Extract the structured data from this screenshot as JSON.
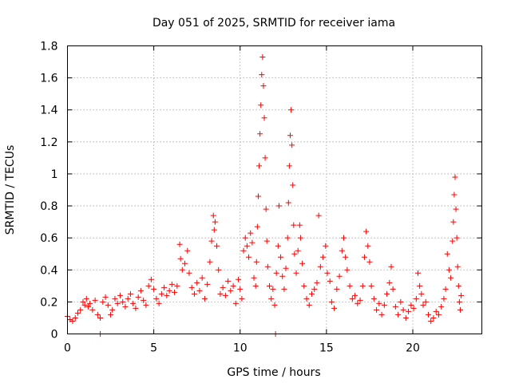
{
  "chart_data": {
    "type": "scatter",
    "title": "Day 051 of 2025, SRMTID for receiver iama",
    "xlabel": "GPS time / hours",
    "ylabel": "SRMTID / TECUs",
    "xlim": [
      0,
      24
    ],
    "ylim": [
      0,
      1.8
    ],
    "xticks": [
      0,
      5,
      10,
      15,
      20
    ],
    "xtick_labels": [
      "0",
      "5",
      "10",
      "15",
      "20"
    ],
    "yticks": [
      0,
      0.2,
      0.4,
      0.6,
      0.8,
      1.0,
      1.2,
      1.4,
      1.6,
      1.8
    ],
    "ytick_labels": [
      "0",
      "0.2",
      "0.4",
      "0.6",
      "0.8",
      "1",
      "1.2",
      "1.4",
      "1.6",
      "1.8"
    ],
    "grid": true,
    "marker": "+",
    "color": "#ff0000",
    "series": [
      {
        "name": "SRMTID",
        "points": [
          [
            0.0,
            0.11
          ],
          [
            0.15,
            0.09
          ],
          [
            0.3,
            0.08
          ],
          [
            0.45,
            0.1
          ],
          [
            0.6,
            0.13
          ],
          [
            0.75,
            0.15
          ],
          [
            0.9,
            0.2
          ],
          [
            1.0,
            0.18
          ],
          [
            1.1,
            0.22
          ],
          [
            1.2,
            0.17
          ],
          [
            1.3,
            0.19
          ],
          [
            1.45,
            0.15
          ],
          [
            1.6,
            0.21
          ],
          [
            1.75,
            0.12
          ],
          [
            1.9,
            0.1
          ],
          [
            1.9,
            0.0
          ],
          [
            2.05,
            0.2
          ],
          [
            2.2,
            0.23
          ],
          [
            2.35,
            0.18
          ],
          [
            2.5,
            0.12
          ],
          [
            2.6,
            0.15
          ],
          [
            2.75,
            0.22
          ],
          [
            2.9,
            0.19
          ],
          [
            3.05,
            0.24
          ],
          [
            3.2,
            0.2
          ],
          [
            3.35,
            0.17
          ],
          [
            3.5,
            0.22
          ],
          [
            3.65,
            0.25
          ],
          [
            3.8,
            0.19
          ],
          [
            3.95,
            0.16
          ],
          [
            4.1,
            0.23
          ],
          [
            4.25,
            0.27
          ],
          [
            4.4,
            0.21
          ],
          [
            4.55,
            0.18
          ],
          [
            4.7,
            0.3
          ],
          [
            4.85,
            0.34
          ],
          [
            5.0,
            0.28
          ],
          [
            5.15,
            0.22
          ],
          [
            5.3,
            0.19
          ],
          [
            5.45,
            0.25
          ],
          [
            5.6,
            0.29
          ],
          [
            5.75,
            0.24
          ],
          [
            5.9,
            0.27
          ],
          [
            6.05,
            0.31
          ],
          [
            6.2,
            0.26
          ],
          [
            6.35,
            0.3
          ],
          [
            6.5,
            0.56
          ],
          [
            6.55,
            0.47
          ],
          [
            6.65,
            0.4
          ],
          [
            6.8,
            0.44
          ],
          [
            6.95,
            0.52
          ],
          [
            7.05,
            0.38
          ],
          [
            7.2,
            0.29
          ],
          [
            7.35,
            0.25
          ],
          [
            7.5,
            0.32
          ],
          [
            7.65,
            0.27
          ],
          [
            7.8,
            0.35
          ],
          [
            7.95,
            0.22
          ],
          [
            8.1,
            0.31
          ],
          [
            8.25,
            0.45
          ],
          [
            8.35,
            0.58
          ],
          [
            8.45,
            0.74
          ],
          [
            8.5,
            0.65
          ],
          [
            8.55,
            0.7
          ],
          [
            8.65,
            0.55
          ],
          [
            8.75,
            0.4
          ],
          [
            8.85,
            0.25
          ],
          [
            9.0,
            0.29
          ],
          [
            9.15,
            0.24
          ],
          [
            9.3,
            0.33
          ],
          [
            9.45,
            0.27
          ],
          [
            9.6,
            0.3
          ],
          [
            9.75,
            0.19
          ],
          [
            9.9,
            0.34
          ],
          [
            10.0,
            0.28
          ],
          [
            10.1,
            0.22
          ],
          [
            10.2,
            0.52
          ],
          [
            10.3,
            0.6
          ],
          [
            10.4,
            0.55
          ],
          [
            10.5,
            0.48
          ],
          [
            10.6,
            0.63
          ],
          [
            10.7,
            0.57
          ],
          [
            10.8,
            0.35
          ],
          [
            10.9,
            0.3
          ],
          [
            10.95,
            0.45
          ],
          [
            11.0,
            0.67
          ],
          [
            11.05,
            0.86
          ],
          [
            11.1,
            1.05
          ],
          [
            11.15,
            1.25
          ],
          [
            11.2,
            1.43
          ],
          [
            11.25,
            1.62
          ],
          [
            11.3,
            1.73
          ],
          [
            11.35,
            1.55
          ],
          [
            11.4,
            1.35
          ],
          [
            11.45,
            1.1
          ],
          [
            11.5,
            0.78
          ],
          [
            11.55,
            0.58
          ],
          [
            11.6,
            0.42
          ],
          [
            11.7,
            0.3
          ],
          [
            11.8,
            0.22
          ],
          [
            11.9,
            0.28
          ],
          [
            12.0,
            0.18
          ],
          [
            12.05,
            0.0
          ],
          [
            12.1,
            0.38
          ],
          [
            12.2,
            0.55
          ],
          [
            12.25,
            0.8
          ],
          [
            12.35,
            0.48
          ],
          [
            12.45,
            0.36
          ],
          [
            12.55,
            0.28
          ],
          [
            12.65,
            0.41
          ],
          [
            12.75,
            0.6
          ],
          [
            12.8,
            0.82
          ],
          [
            12.85,
            1.05
          ],
          [
            12.9,
            1.24
          ],
          [
            12.95,
            1.4
          ],
          [
            13.0,
            1.18
          ],
          [
            13.05,
            0.93
          ],
          [
            13.1,
            0.68
          ],
          [
            13.15,
            0.5
          ],
          [
            13.25,
            0.38
          ],
          [
            13.35,
            0.52
          ],
          [
            13.45,
            0.68
          ],
          [
            13.5,
            0.6
          ],
          [
            13.6,
            0.44
          ],
          [
            13.7,
            0.3
          ],
          [
            13.85,
            0.22
          ],
          [
            14.0,
            0.18
          ],
          [
            14.15,
            0.25
          ],
          [
            14.3,
            0.28
          ],
          [
            14.45,
            0.32
          ],
          [
            14.55,
            0.74
          ],
          [
            14.65,
            0.42
          ],
          [
            14.8,
            0.48
          ],
          [
            14.95,
            0.55
          ],
          [
            15.05,
            0.38
          ],
          [
            15.2,
            0.33
          ],
          [
            15.3,
            0.2
          ],
          [
            15.45,
            0.16
          ],
          [
            15.6,
            0.28
          ],
          [
            15.75,
            0.36
          ],
          [
            15.9,
            0.52
          ],
          [
            16.0,
            0.6
          ],
          [
            16.1,
            0.48
          ],
          [
            16.2,
            0.4
          ],
          [
            16.35,
            0.3
          ],
          [
            16.5,
            0.22
          ],
          [
            16.65,
            0.24
          ],
          [
            16.8,
            0.19
          ],
          [
            16.95,
            0.21
          ],
          [
            17.1,
            0.3
          ],
          [
            17.2,
            0.48
          ],
          [
            17.3,
            0.64
          ],
          [
            17.4,
            0.55
          ],
          [
            17.5,
            0.45
          ],
          [
            17.6,
            0.3
          ],
          [
            17.75,
            0.22
          ],
          [
            17.9,
            0.15
          ],
          [
            18.05,
            0.19
          ],
          [
            18.2,
            0.12
          ],
          [
            18.35,
            0.18
          ],
          [
            18.5,
            0.25
          ],
          [
            18.65,
            0.32
          ],
          [
            18.75,
            0.42
          ],
          [
            18.85,
            0.28
          ],
          [
            19.0,
            0.17
          ],
          [
            19.15,
            0.12
          ],
          [
            19.3,
            0.2
          ],
          [
            19.45,
            0.15
          ],
          [
            19.6,
            0.1
          ],
          [
            19.75,
            0.14
          ],
          [
            19.9,
            0.18
          ],
          [
            20.05,
            0.16
          ],
          [
            20.2,
            0.22
          ],
          [
            20.3,
            0.38
          ],
          [
            20.4,
            0.3
          ],
          [
            20.5,
            0.25
          ],
          [
            20.6,
            0.18
          ],
          [
            20.75,
            0.2
          ],
          [
            20.9,
            0.12
          ],
          [
            21.05,
            0.08
          ],
          [
            21.2,
            0.1
          ],
          [
            21.35,
            0.14
          ],
          [
            21.5,
            0.12
          ],
          [
            21.65,
            0.17
          ],
          [
            21.8,
            0.22
          ],
          [
            21.9,
            0.28
          ],
          [
            22.0,
            0.5
          ],
          [
            22.1,
            0.4
          ],
          [
            22.2,
            0.35
          ],
          [
            22.3,
            0.58
          ],
          [
            22.35,
            0.7
          ],
          [
            22.4,
            0.87
          ],
          [
            22.45,
            0.98
          ],
          [
            22.5,
            0.78
          ],
          [
            22.55,
            0.6
          ],
          [
            22.6,
            0.42
          ],
          [
            22.65,
            0.3
          ],
          [
            22.7,
            0.2
          ],
          [
            22.75,
            0.15
          ],
          [
            22.8,
            0.24
          ]
        ]
      }
    ]
  }
}
